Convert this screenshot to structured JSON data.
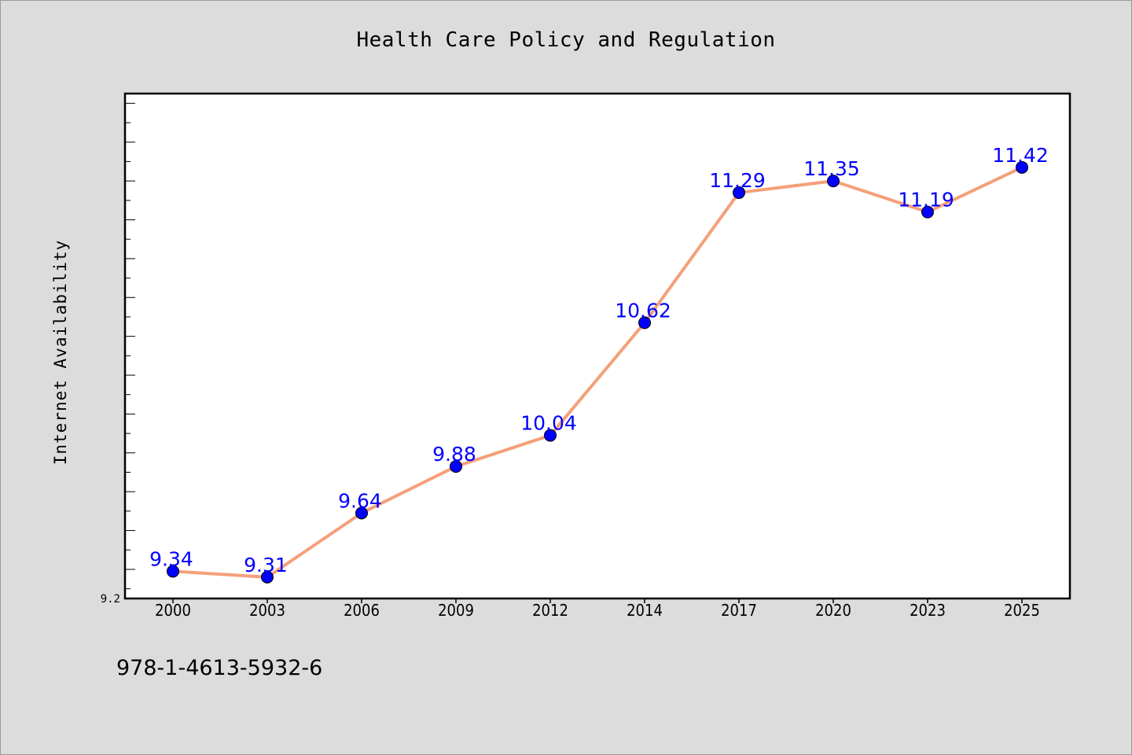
{
  "chart_data": {
    "type": "line",
    "title": "Health Care Policy and Regulation",
    "xlabel": "",
    "ylabel": "Internet Availability",
    "categories": [
      "2000",
      "2003",
      "2006",
      "2009",
      "2012",
      "2014",
      "2017",
      "2020",
      "2023",
      "2025"
    ],
    "series": [
      {
        "values": [
          9.34,
          9.31,
          9.64,
          9.88,
          10.04,
          10.62,
          11.29,
          11.35,
          11.19,
          11.42
        ]
      }
    ],
    "data_labels": [
      "9.34",
      "9.31",
      "9.64",
      "9.88",
      "10.04",
      "10.62",
      "11.29",
      "11.35",
      "11.19",
      "11.42"
    ],
    "ylim": [
      9.2,
      11.8
    ],
    "y_tick_labels": [
      "9.2"
    ],
    "grid": false,
    "colors": {
      "line": "#f4a07a",
      "marker": "#0000ff",
      "data_label": "#0000ff",
      "plot_background": "#ffffff",
      "page_background": "#dcdcdc"
    }
  },
  "footer": {
    "isbn": "978-1-4613-5932-6"
  }
}
